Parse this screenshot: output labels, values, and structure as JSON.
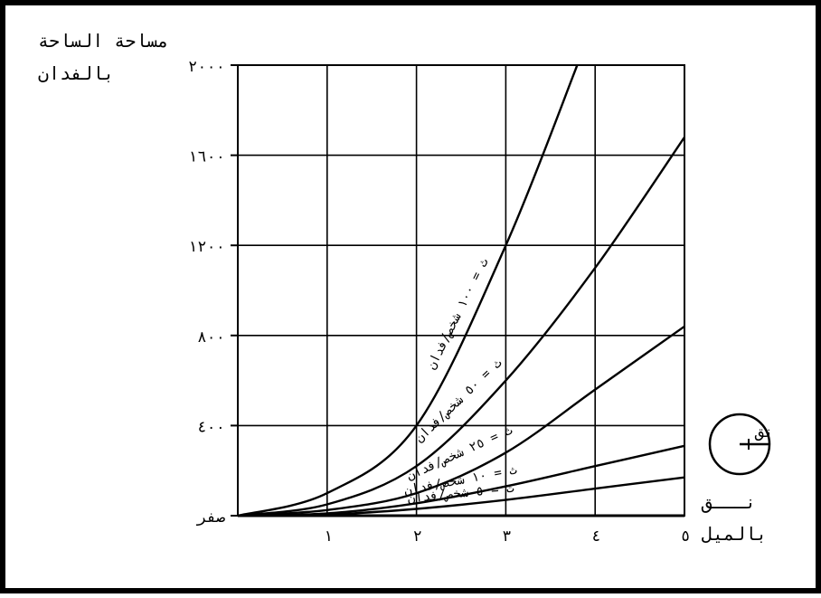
{
  "chart_data": {
    "type": "line",
    "ylabel_lines": [
      "مساحة الساحة",
      "بالفدان"
    ],
    "xlabel_lines": [
      "نـــق",
      "بالميل"
    ],
    "xlim": [
      0,
      5
    ],
    "ylim": [
      0,
      2000
    ],
    "grid": true,
    "x_ticks": [
      {
        "v": 1,
        "label": "١"
      },
      {
        "v": 2,
        "label": "٢"
      },
      {
        "v": 3,
        "label": "٣"
      },
      {
        "v": 4,
        "label": "٤"
      },
      {
        "v": 5,
        "label": "٥"
      }
    ],
    "y_ticks": [
      {
        "v": 0,
        "label": "صفر"
      },
      {
        "v": 400,
        "label": "٤٠٠"
      },
      {
        "v": 800,
        "label": "٨٠٠"
      },
      {
        "v": 1200,
        "label": "١٢٠٠"
      },
      {
        "v": 1600,
        "label": "١٦٠٠"
      },
      {
        "v": 2000,
        "label": "٢٠٠٠"
      }
    ],
    "series": [
      {
        "name": "ث = ١٠٠ شخص/فدان",
        "points": [
          [
            0,
            0
          ],
          [
            1,
            100
          ],
          [
            2,
            400
          ],
          [
            3,
            1200
          ],
          [
            3.8,
            2000
          ]
        ]
      },
      {
        "name": "ث = ٥٠ شخص/فدان",
        "points": [
          [
            0,
            0
          ],
          [
            1,
            50
          ],
          [
            2,
            220
          ],
          [
            3,
            600
          ],
          [
            4,
            1100
          ],
          [
            5,
            1680
          ]
        ]
      },
      {
        "name": "ث = ٢٥ شخص/فدان",
        "points": [
          [
            0,
            0
          ],
          [
            1,
            25
          ],
          [
            2,
            100
          ],
          [
            3,
            280
          ],
          [
            4,
            560
          ],
          [
            5,
            840
          ]
        ]
      },
      {
        "name": "ث = ١٠ شخص/فدان",
        "points": [
          [
            0,
            0
          ],
          [
            1,
            10
          ],
          [
            2,
            55
          ],
          [
            3,
            130
          ],
          [
            4,
            220
          ],
          [
            5,
            310
          ]
        ]
      },
      {
        "name": "ث = ٥ شخص/فدان",
        "points": [
          [
            0,
            0
          ],
          [
            1,
            5
          ],
          [
            2,
            30
          ],
          [
            3,
            70
          ],
          [
            4,
            120
          ],
          [
            5,
            170
          ]
        ]
      }
    ],
    "inset": {
      "label": "نق"
    }
  }
}
